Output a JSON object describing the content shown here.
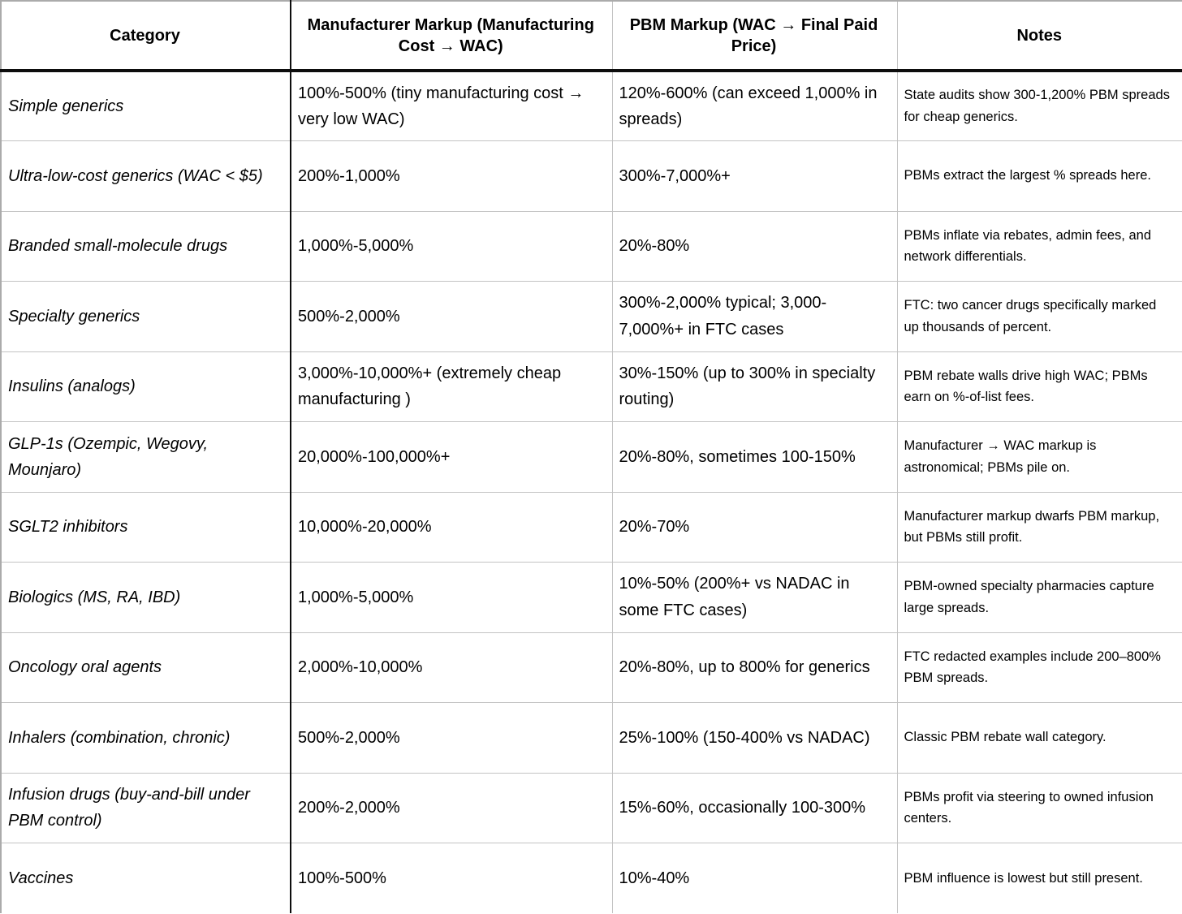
{
  "table": {
    "columns": [
      {
        "label": "Category"
      },
      {
        "label": "Manufacturer Markup (Manufacturing Cost → WAC)"
      },
      {
        "label": "PBM Markup (WAC → Final Paid Price)"
      },
      {
        "label": "Notes"
      }
    ],
    "rows": [
      {
        "category": "Simple generics",
        "manufacturer_markup": "100%-500% (tiny manufacturing cost → very low WAC)",
        "pbm_markup": "120%-600% (can exceed 1,000% in spreads)",
        "notes": "State audits show 300-1,200% PBM spreads for cheap generics."
      },
      {
        "category": "Ultra-low-cost generics (WAC < $5)",
        "manufacturer_markup": "200%-1,000%",
        "pbm_markup": "300%-7,000%+",
        "notes": "PBMs extract the largest % spreads here."
      },
      {
        "category": "Branded small-molecule drugs",
        "manufacturer_markup": "1,000%-5,000%",
        "pbm_markup": "20%-80%",
        "notes": "PBMs inflate via rebates, admin fees, and network differentials."
      },
      {
        "category": "Specialty generics",
        "manufacturer_markup": "500%-2,000%",
        "pbm_markup": "300%-2,000% typical; 3,000-7,000%+ in FTC cases",
        "notes": "FTC: two cancer drugs specifically marked up thousands of percent."
      },
      {
        "category": "Insulins (analogs)",
        "manufacturer_markup": "3,000%-10,000%+ (extremely cheap manufacturing )",
        "pbm_markup": "30%-150% (up to 300% in specialty routing)",
        "notes": "PBM rebate walls drive high WAC; PBMs earn on %-of-list fees."
      },
      {
        "category": "GLP-1s (Ozempic, Wegovy, Mounjaro)",
        "manufacturer_markup": "20,000%-100,000%+",
        "pbm_markup": "20%-80%, sometimes 100-150%",
        "notes": "Manufacturer → WAC markup is astronomical; PBMs pile on."
      },
      {
        "category": "SGLT2 inhibitors",
        "manufacturer_markup": "10,000%-20,000%",
        "pbm_markup": "20%-70%",
        "notes": "Manufacturer markup dwarfs PBM markup, but PBMs still profit."
      },
      {
        "category": "Biologics (MS, RA, IBD)",
        "manufacturer_markup": "1,000%-5,000%",
        "pbm_markup": "10%-50% (200%+ vs NADAC in some FTC cases)",
        "notes": "PBM-owned specialty pharmacies capture large spreads."
      },
      {
        "category": "Oncology oral agents",
        "manufacturer_markup": "2,000%-10,000%",
        "pbm_markup": "20%-80%, up to 800% for generics",
        "notes": "FTC redacted examples include 200–800% PBM spreads."
      },
      {
        "category": "Inhalers (combination, chronic)",
        "manufacturer_markup": "500%-2,000%",
        "pbm_markup": "25%-100% (150-400% vs NADAC)",
        "notes": "Classic PBM rebate wall category."
      },
      {
        "category": "Infusion drugs (buy-and-bill under PBM control)",
        "manufacturer_markup": "200%-2,000%",
        "pbm_markup": "15%-60%, occasionally 100-300%",
        "notes": "PBMs profit via steering to owned infusion centers."
      },
      {
        "category": "Vaccines",
        "manufacturer_markup": "100%-500%",
        "pbm_markup": "10%-40%",
        "notes": "PBM influence is lowest but still present."
      }
    ]
  }
}
